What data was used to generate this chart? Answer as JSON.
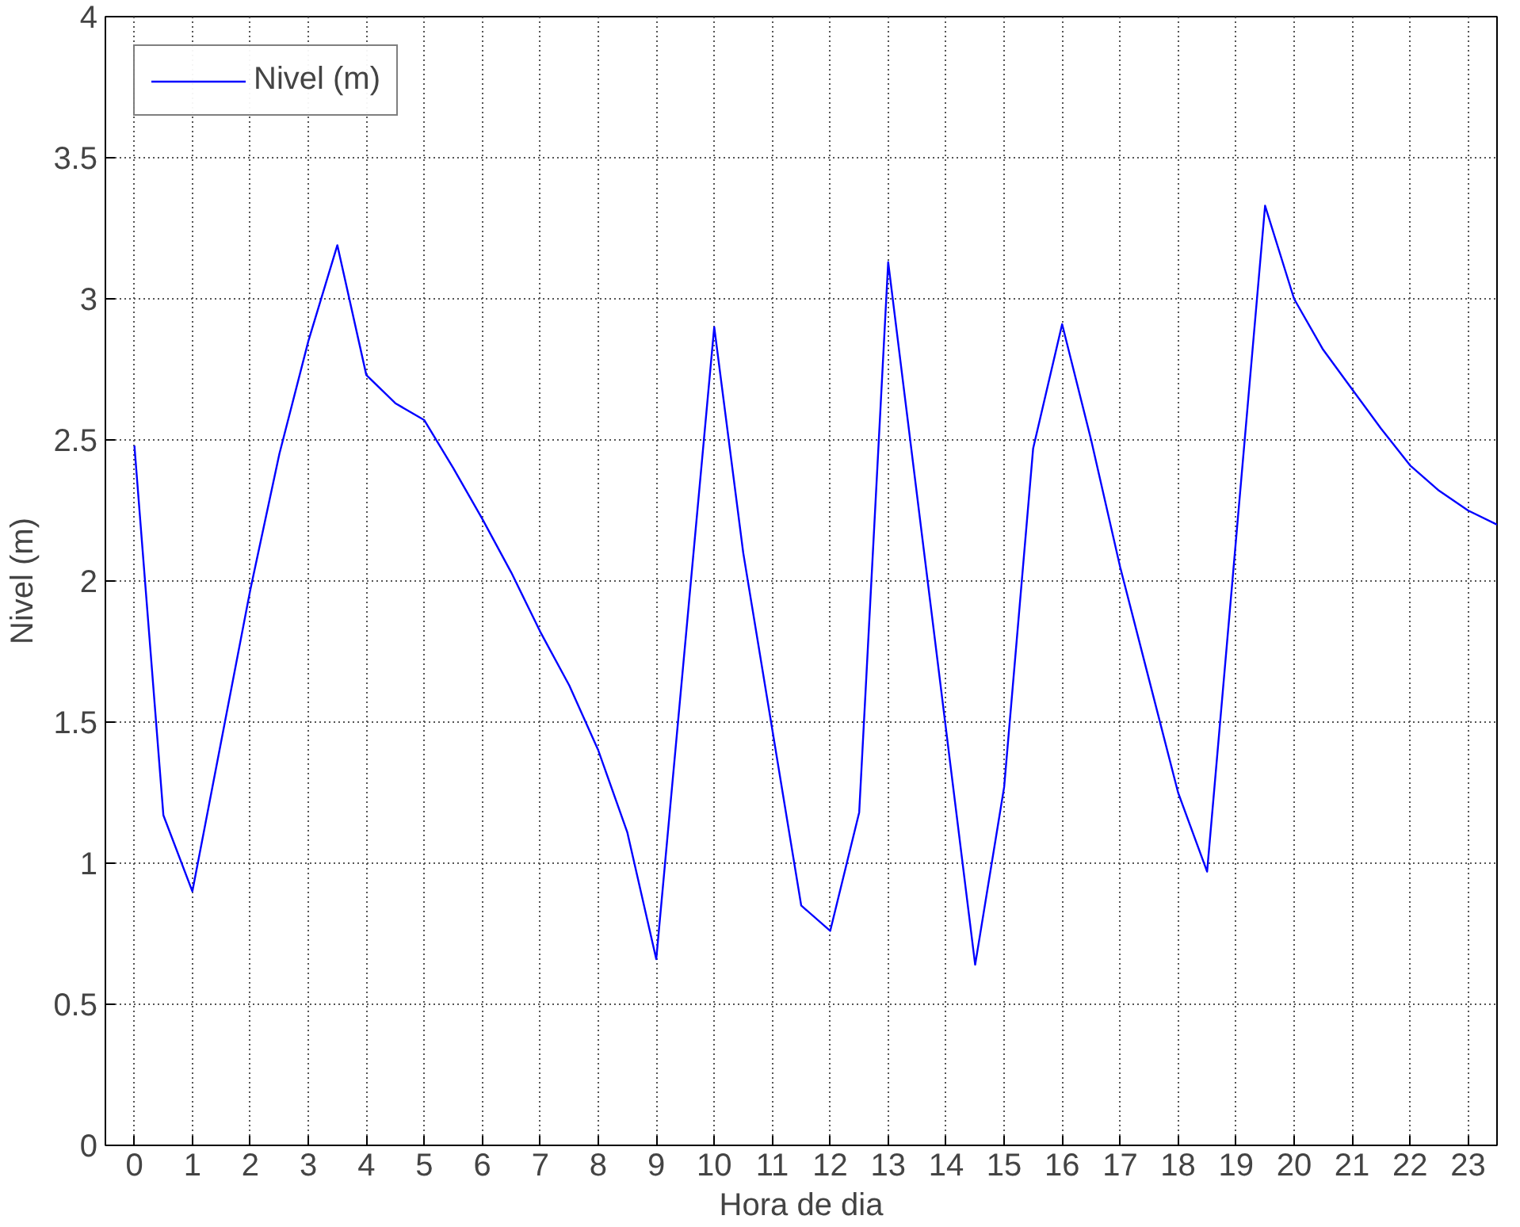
{
  "chart_data": {
    "type": "line",
    "xlabel": "Hora de dia",
    "ylabel": "Nivel (m)",
    "xlim": [
      -0.5,
      23.5
    ],
    "ylim": [
      0,
      4
    ],
    "xticks": [
      0,
      1,
      2,
      3,
      4,
      5,
      6,
      7,
      8,
      9,
      10,
      11,
      12,
      13,
      14,
      15,
      16,
      17,
      18,
      19,
      20,
      21,
      22,
      23
    ],
    "yticks": [
      0,
      0.5,
      1,
      1.5,
      2,
      2.5,
      3,
      3.5,
      4
    ],
    "grid": true,
    "legend": "top left",
    "line_style": "solid",
    "series": [
      {
        "name": "Nivel (m)",
        "color": "#0000ff",
        "x": [
          0,
          0.5,
          1,
          2,
          2.5,
          3,
          3.5,
          4,
          4.5,
          5,
          5.5,
          6,
          6.5,
          7,
          7.5,
          8,
          8.5,
          9,
          10,
          10.5,
          11.5,
          12,
          12.5,
          13,
          14.5,
          15,
          15.5,
          16,
          16.5,
          17,
          17.5,
          18,
          18.5,
          19.5,
          20,
          20.5,
          21,
          21.5,
          22,
          22.5,
          23,
          23.5
        ],
        "values": [
          2.48,
          1.17,
          0.9,
          1.97,
          2.45,
          2.85,
          3.19,
          2.73,
          2.63,
          2.57,
          2.4,
          2.22,
          2.03,
          1.82,
          1.63,
          1.4,
          1.11,
          0.66,
          2.9,
          2.1,
          0.85,
          0.76,
          1.18,
          3.13,
          0.64,
          1.27,
          2.47,
          2.91,
          2.5,
          2.05,
          1.65,
          1.25,
          0.97,
          3.33,
          3.0,
          2.82,
          2.68,
          2.54,
          2.41,
          2.32,
          2.25,
          2.2
        ]
      }
    ]
  }
}
